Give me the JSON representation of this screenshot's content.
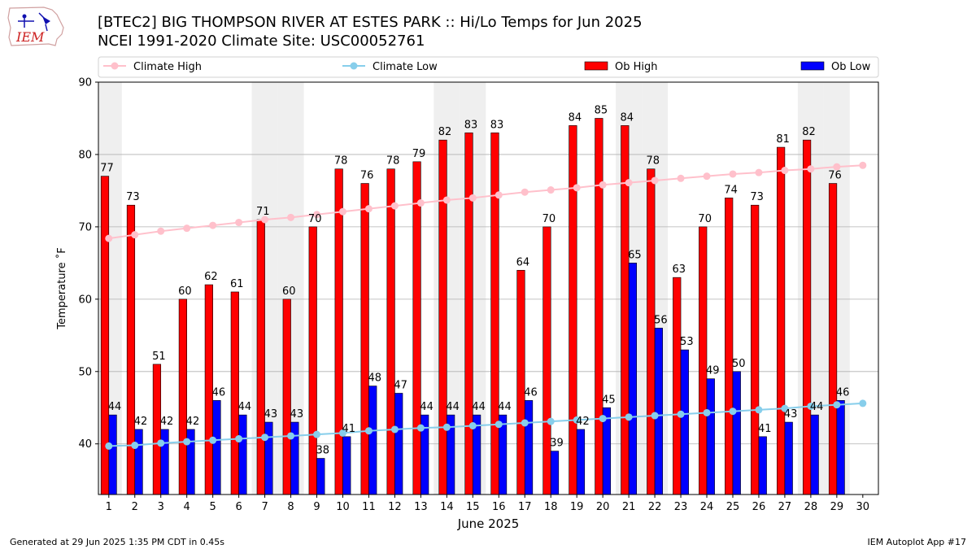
{
  "header": {
    "title": "[BTEC2] BIG THOMPSON RIVER  AT ESTES PARK :: Hi/Lo Temps for Jun 2025",
    "subtitle": "NCEI 1991-2020 Climate Site: USC00052761",
    "logo_text": "IEM"
  },
  "footer": {
    "left": "Generated at 29 Jun 2025 1:35 PM CDT in 0.45s",
    "right": "IEM Autoplot App #17"
  },
  "chart_data": {
    "type": "bar",
    "xlabel": "June 2025",
    "ylabel": "Temperature ˚F",
    "ylim": [
      33,
      90
    ],
    "yticks": [
      40,
      50,
      60,
      70,
      80,
      90
    ],
    "grid": "horizontal",
    "legend_placement": "top",
    "categories": [
      "1",
      "2",
      "3",
      "4",
      "5",
      "6",
      "7",
      "8",
      "9",
      "10",
      "11",
      "12",
      "13",
      "14",
      "15",
      "16",
      "17",
      "18",
      "19",
      "20",
      "21",
      "22",
      "23",
      "24",
      "25",
      "26",
      "27",
      "28",
      "29",
      "30"
    ],
    "weekend_shading_days": [
      1,
      7,
      8,
      14,
      15,
      21,
      22,
      28,
      29
    ],
    "series": [
      {
        "name": "Climate High",
        "kind": "line",
        "color": "#ffc0cb",
        "values": [
          68.4,
          68.9,
          69.4,
          69.8,
          70.2,
          70.6,
          71.0,
          71.3,
          71.7,
          72.1,
          72.5,
          72.9,
          73.3,
          73.7,
          74.0,
          74.4,
          74.8,
          75.1,
          75.4,
          75.8,
          76.1,
          76.4,
          76.7,
          77.0,
          77.3,
          77.5,
          77.8,
          78.0,
          78.3,
          78.5
        ]
      },
      {
        "name": "Climate Low",
        "kind": "line",
        "color": "#87ceeb",
        "values": [
          39.7,
          39.8,
          40.1,
          40.3,
          40.5,
          40.7,
          40.9,
          41.1,
          41.3,
          41.5,
          41.8,
          42.0,
          42.2,
          42.3,
          42.5,
          42.7,
          42.9,
          43.1,
          43.3,
          43.5,
          43.7,
          43.9,
          44.1,
          44.3,
          44.5,
          44.7,
          44.9,
          45.2,
          45.4,
          45.6
        ]
      },
      {
        "name": "Ob High",
        "kind": "bar",
        "color": "#ff0000",
        "values": [
          77,
          73,
          51,
          60,
          62,
          61,
          71,
          60,
          70,
          78,
          76,
          78,
          79,
          82,
          83,
          83,
          64,
          70,
          84,
          85,
          84,
          78,
          63,
          70,
          74,
          73,
          81,
          82,
          76,
          null
        ]
      },
      {
        "name": "Ob Low",
        "kind": "bar",
        "color": "#0000ff",
        "values": [
          44,
          42,
          42,
          42,
          46,
          44,
          43,
          43,
          38,
          41,
          48,
          47,
          44,
          44,
          44,
          44,
          46,
          39,
          42,
          45,
          65,
          56,
          53,
          49,
          50,
          41,
          43,
          44,
          46,
          null
        ]
      }
    ]
  }
}
